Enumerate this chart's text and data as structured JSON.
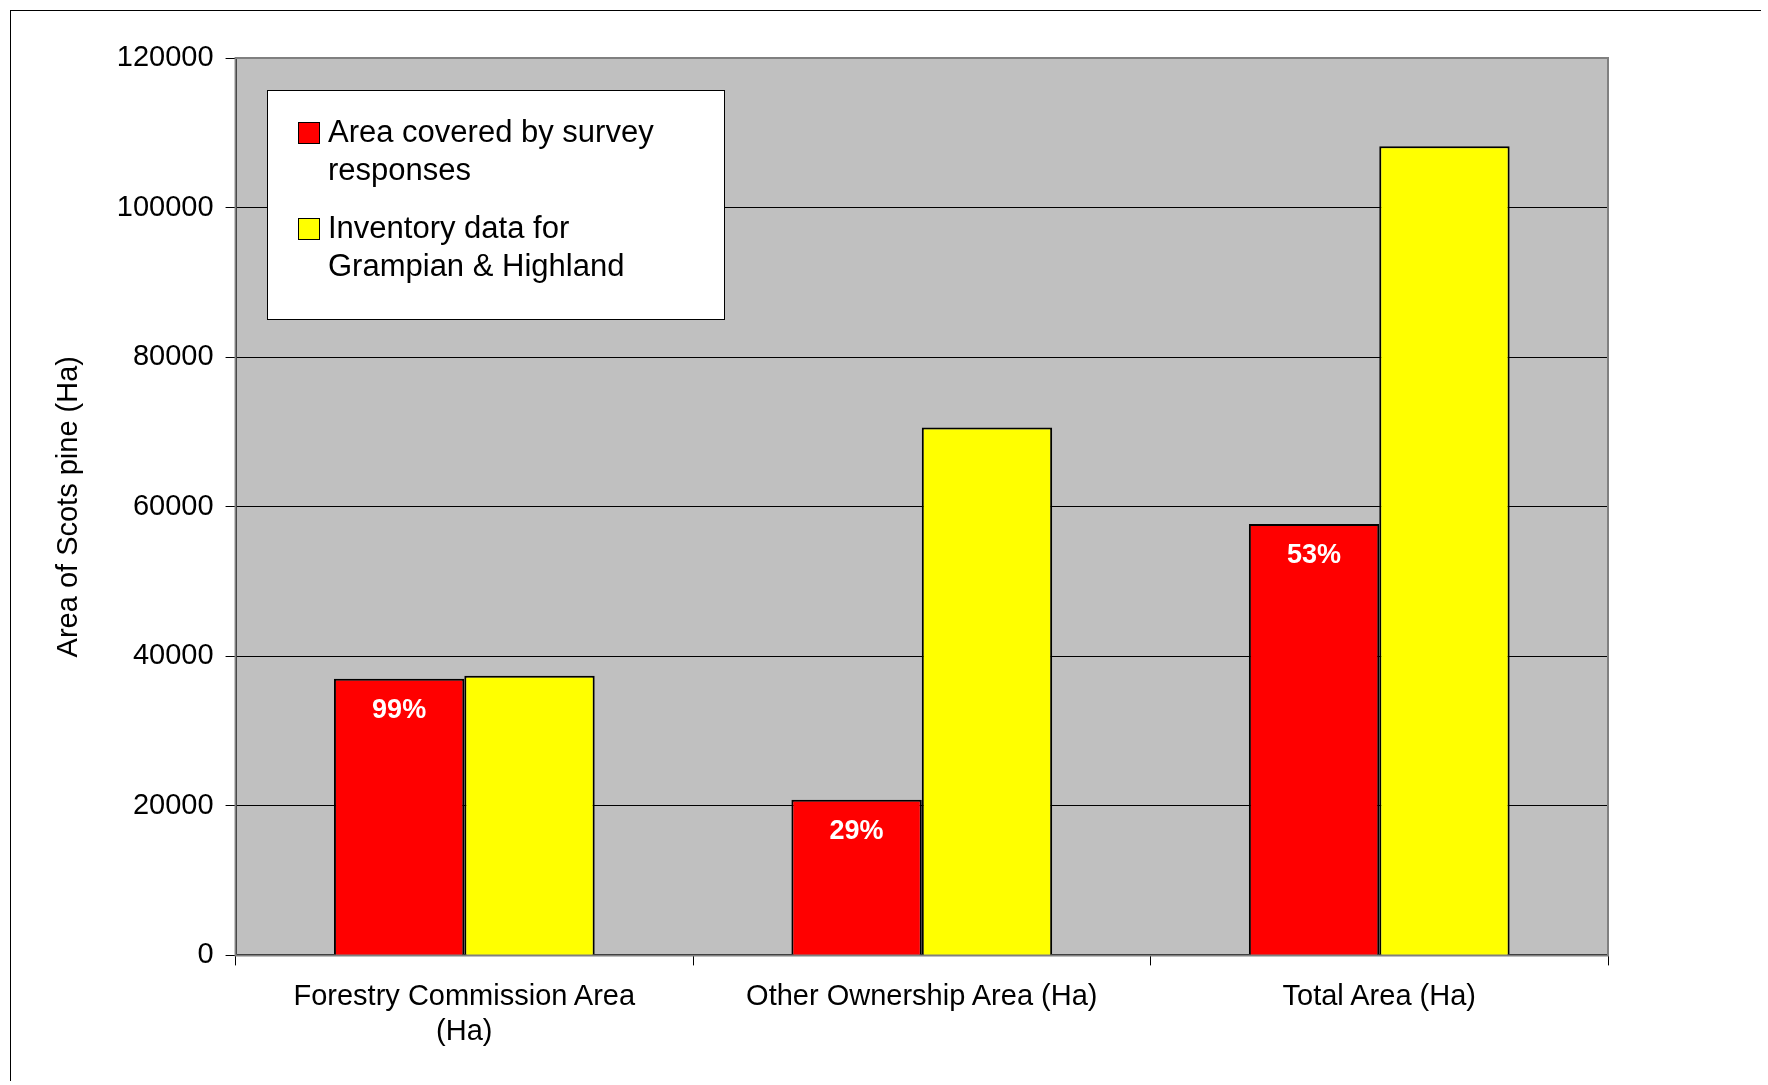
{
  "chart_data": {
    "type": "bar",
    "ylabel": "Area of Scots pine (Ha)",
    "categories": [
      "Forestry Commission Area (Ha)",
      "Other Ownership Area (Ha)",
      "Total Area (Ha)"
    ],
    "series": [
      {
        "name": "Area covered by survey responses",
        "color": "#ff0000",
        "values": [
          37000,
          20800,
          57700
        ]
      },
      {
        "name": "Inventory data for Grampian & Highland",
        "color": "#ffff00",
        "values": [
          37400,
          70600,
          108200
        ]
      }
    ],
    "ylim": [
      0,
      120000
    ],
    "yticks": [
      0,
      20000,
      40000,
      60000,
      80000,
      100000,
      120000
    ],
    "grid": "y",
    "legend": "top left",
    "annotations": [
      {
        "text": "99%",
        "x": "Forestry Commission Area (Ha)",
        "y": 37000
      },
      {
        "text": "29%",
        "x": "Other Ownership Area (Ha)",
        "y": 20800
      },
      {
        "text": "53%",
        "x": "Total Area (Ha)",
        "y": 57700
      }
    ]
  }
}
